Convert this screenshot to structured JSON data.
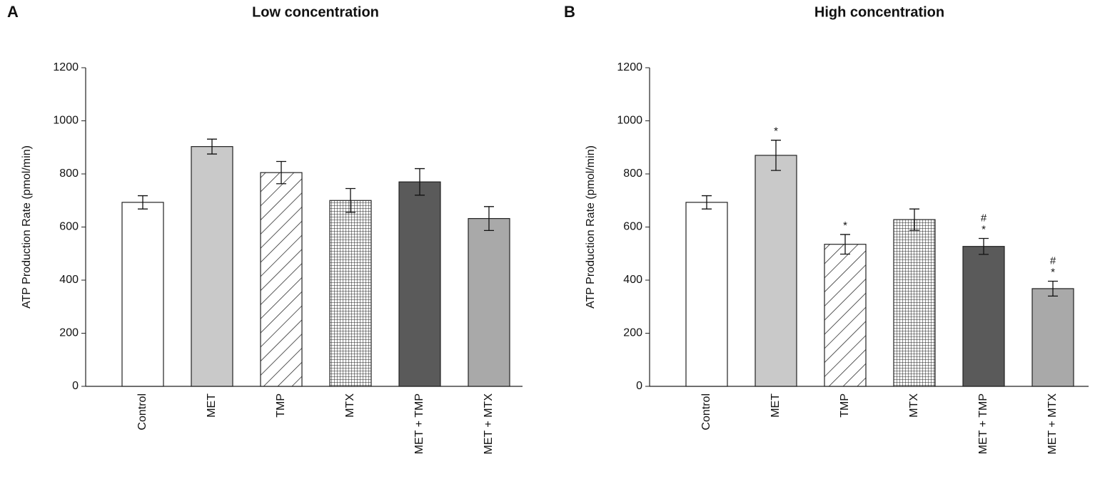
{
  "chart_data": [
    {
      "type": "bar",
      "panel": "A",
      "title": "Low concentration",
      "ylabel": "ATP Production Rate (pmol/min)",
      "categories": [
        "Control",
        "MET",
        "TMP",
        "MTX",
        "MET + TMP",
        "MET + MTX"
      ],
      "values": [
        693,
        903,
        805,
        700,
        770,
        632
      ],
      "errors": [
        25,
        28,
        42,
        45,
        50,
        45
      ],
      "colors": [
        "#ffffff",
        "#c9c9c9",
        "#ffffff",
        "#ffffff",
        "#5a5a5a",
        "#a9a9a9"
      ],
      "hatch": [
        null,
        null,
        "diagonal",
        "grid",
        null,
        null
      ],
      "ylim": [
        0,
        1200
      ],
      "yticks": [
        0,
        200,
        400,
        600,
        800,
        1000,
        1200
      ]
    },
    {
      "type": "bar",
      "panel": "B",
      "title": "High concentration",
      "ylabel": "ATP Production Rate (pmol/min)",
      "categories": [
        "Control",
        "MET",
        "TMP",
        "MTX",
        "MET + TMP",
        "MET + MTX"
      ],
      "values": [
        693,
        870,
        535,
        628,
        527,
        368
      ],
      "errors": [
        25,
        57,
        37,
        40,
        30,
        28
      ],
      "colors": [
        "#ffffff",
        "#c9c9c9",
        "#ffffff",
        "#ffffff",
        "#5a5a5a",
        "#a9a9a9"
      ],
      "hatch": [
        null,
        null,
        "diagonal",
        "grid",
        null,
        null
      ],
      "annotations": [
        null,
        [
          "*"
        ],
        [
          "*"
        ],
        null,
        [
          "#",
          "*"
        ],
        [
          "#",
          "*"
        ]
      ],
      "ylim": [
        0,
        1200
      ],
      "yticks": [
        0,
        200,
        400,
        600,
        800,
        1000,
        1200
      ]
    }
  ]
}
